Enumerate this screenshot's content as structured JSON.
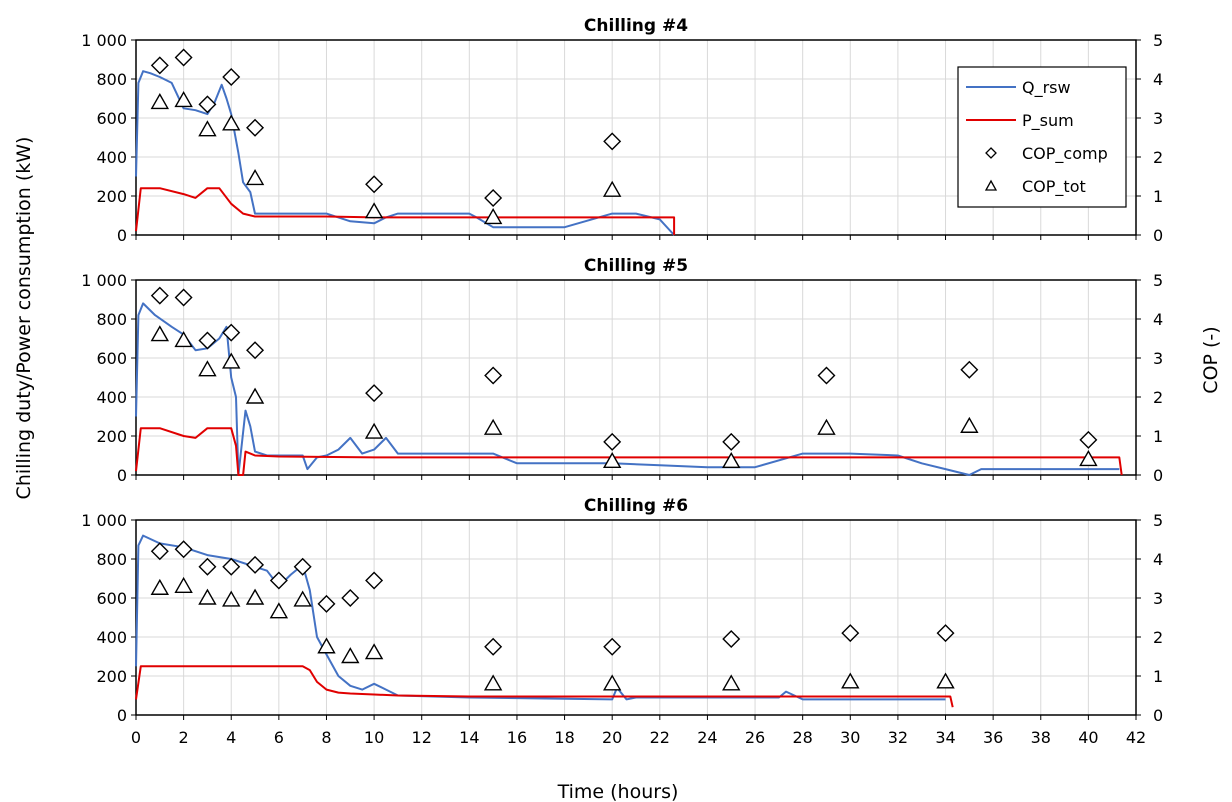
{
  "figure": {
    "ylabel_left": "Chilling duty/Power consumption (kW)",
    "ylabel_right": "COP (-)",
    "xlabel": "Time (hours)",
    "x_ticks": [
      "0",
      "2",
      "4",
      "6",
      "8",
      "10",
      "12",
      "14",
      "16",
      "18",
      "20",
      "22",
      "24",
      "26",
      "28",
      "30",
      "32",
      "34",
      "36",
      "38",
      "40",
      "42"
    ],
    "left_ticks": [
      "0",
      "200",
      "400",
      "600",
      "800",
      "1 000"
    ],
    "right_ticks": [
      "0",
      "1",
      "2",
      "3",
      "4",
      "5"
    ],
    "legend": {
      "q": "Q_rsw",
      "p": "P_sum",
      "cop_comp": "COP_comp",
      "cop_tot": "COP_tot"
    }
  },
  "chart_data": [
    {
      "type": "line",
      "title": "Chilling #4",
      "xlim": [
        0,
        42
      ],
      "ylim_left": [
        0,
        1000
      ],
      "ylim_right": [
        0,
        5
      ],
      "grid": true,
      "legend_position": "top-right",
      "series": [
        {
          "name": "Q_rsw",
          "color": "#4472C4",
          "x": [
            0,
            0.1,
            0.3,
            0.6,
            1,
            1.5,
            2,
            2.5,
            3,
            3.3,
            3.6,
            3.8,
            4,
            4.3,
            4.5,
            4.8,
            5,
            6,
            8,
            9,
            10,
            10.5,
            11,
            14,
            14.3,
            15,
            18,
            20,
            21,
            22,
            22.6
          ],
          "y": [
            300,
            780,
            840,
            830,
            810,
            780,
            650,
            640,
            620,
            680,
            770,
            700,
            620,
            420,
            270,
            220,
            110,
            110,
            110,
            70,
            60,
            90,
            110,
            110,
            90,
            40,
            40,
            110,
            110,
            80,
            0
          ]
        },
        {
          "name": "P_sum",
          "color": "#E00000",
          "x": [
            0,
            0.2,
            1,
            2,
            2.5,
            3,
            3.5,
            4,
            4.5,
            5,
            6,
            8,
            10,
            12,
            15,
            18,
            20,
            22.6,
            22.6
          ],
          "y": [
            20,
            240,
            240,
            210,
            190,
            240,
            240,
            160,
            110,
            95,
            95,
            95,
            90,
            90,
            90,
            90,
            90,
            90,
            0
          ]
        },
        {
          "name": "COP_comp",
          "axis": "right",
          "marker": "diamond",
          "x": [
            1,
            2,
            3,
            4,
            5,
            10,
            15,
            20
          ],
          "y": [
            4.35,
            4.55,
            3.35,
            4.05,
            2.75,
            1.3,
            0.95,
            2.4
          ]
        },
        {
          "name": "COP_tot",
          "axis": "right",
          "marker": "triangle",
          "x": [
            1,
            2,
            3,
            4,
            5,
            10,
            15,
            20
          ],
          "y": [
            3.4,
            3.45,
            2.7,
            2.85,
            1.45,
            0.6,
            0.45,
            1.15
          ]
        }
      ]
    },
    {
      "type": "line",
      "title": "Chilling #5",
      "xlim": [
        0,
        42
      ],
      "ylim_left": [
        0,
        1000
      ],
      "ylim_right": [
        0,
        5
      ],
      "grid": true,
      "legend_position": "none",
      "series": [
        {
          "name": "Q_rsw",
          "color": "#4472C4",
          "x": [
            0,
            0.1,
            0.3,
            0.8,
            1.5,
            2,
            2.5,
            3,
            3.5,
            3.8,
            4,
            4.2,
            4.3,
            4.6,
            4.8,
            5,
            5.5,
            6,
            7,
            7.2,
            7.6,
            8,
            8.5,
            9,
            9.5,
            10,
            10.5,
            11,
            15,
            16,
            20,
            22,
            24,
            26,
            28,
            30,
            32,
            33,
            34,
            35,
            35.5,
            36,
            41.3
          ],
          "y": [
            300,
            820,
            880,
            820,
            760,
            720,
            640,
            650,
            700,
            760,
            500,
            400,
            0,
            330,
            250,
            120,
            100,
            100,
            100,
            30,
            90,
            100,
            130,
            190,
            110,
            130,
            190,
            110,
            110,
            60,
            60,
            50,
            40,
            40,
            110,
            110,
            100,
            60,
            30,
            0,
            30,
            30,
            30
          ]
        },
        {
          "name": "P_sum",
          "color": "#E00000",
          "x": [
            0,
            0.2,
            1,
            2,
            2.5,
            3,
            4,
            4.2,
            4.3,
            4.5,
            4.6,
            5,
            6,
            10,
            15,
            20,
            25,
            30,
            35,
            41.3,
            41.4
          ],
          "y": [
            20,
            240,
            240,
            200,
            190,
            240,
            240,
            150,
            0,
            0,
            120,
            100,
            95,
            90,
            90,
            90,
            90,
            90,
            90,
            90,
            0
          ]
        },
        {
          "name": "COP_comp",
          "axis": "right",
          "marker": "diamond",
          "x": [
            1,
            2,
            3,
            4,
            5,
            10,
            15,
            20,
            25,
            29,
            35,
            40
          ],
          "y": [
            4.6,
            4.55,
            3.45,
            3.65,
            3.2,
            2.1,
            2.55,
            0.85,
            0.85,
            2.55,
            2.7,
            0.9
          ]
        },
        {
          "name": "COP_tot",
          "axis": "right",
          "marker": "triangle",
          "x": [
            1,
            2,
            3,
            4,
            5,
            10,
            15,
            20,
            25,
            29,
            35,
            40
          ],
          "y": [
            3.6,
            3.45,
            2.7,
            2.9,
            2.0,
            1.1,
            1.2,
            0.35,
            0.35,
            1.2,
            1.25,
            0.4
          ]
        }
      ]
    },
    {
      "type": "line",
      "title": "Chilling #6",
      "xlim": [
        0,
        42
      ],
      "ylim_left": [
        0,
        1000
      ],
      "ylim_right": [
        0,
        5
      ],
      "grid": true,
      "legend_position": "none",
      "series": [
        {
          "name": "Q_rsw",
          "color": "#4472C4",
          "x": [
            0,
            0.1,
            0.3,
            1,
            2,
            3,
            4,
            5,
            5.5,
            6,
            6.5,
            7,
            7.3,
            7.6,
            8,
            8.5,
            9,
            9.5,
            10,
            10.5,
            11,
            14,
            20,
            20.2,
            20.6,
            21,
            26,
            27,
            27.3,
            28,
            34
          ],
          "y": [
            250,
            870,
            920,
            880,
            860,
            820,
            800,
            760,
            740,
            660,
            720,
            770,
            640,
            400,
            310,
            200,
            150,
            130,
            160,
            130,
            100,
            90,
            80,
            140,
            80,
            90,
            90,
            90,
            120,
            80,
            80
          ]
        },
        {
          "name": "P_sum",
          "color": "#E00000",
          "x": [
            0,
            0.2,
            2,
            4,
            6,
            7,
            7.3,
            7.6,
            8,
            8.5,
            9,
            10,
            11,
            14,
            20,
            25,
            30,
            34.2,
            34.3
          ],
          "y": [
            80,
            250,
            250,
            250,
            250,
            250,
            230,
            170,
            130,
            115,
            110,
            105,
            100,
            95,
            95,
            95,
            95,
            95,
            40
          ]
        },
        {
          "name": "COP_comp",
          "axis": "right",
          "marker": "diamond",
          "x": [
            1,
            2,
            3,
            4,
            5,
            6,
            7,
            8,
            9,
            10,
            15,
            20,
            25,
            30,
            34
          ],
          "y": [
            4.2,
            4.25,
            3.8,
            3.8,
            3.85,
            3.45,
            3.8,
            2.85,
            3.0,
            3.45,
            1.75,
            1.75,
            1.95,
            2.1,
            2.1
          ]
        },
        {
          "name": "COP_tot",
          "axis": "right",
          "marker": "triangle",
          "x": [
            1,
            2,
            3,
            4,
            5,
            6,
            7,
            8,
            9,
            10,
            15,
            20,
            25,
            30,
            34
          ],
          "y": [
            3.25,
            3.3,
            3.0,
            2.95,
            3.0,
            2.65,
            2.95,
            1.75,
            1.5,
            1.6,
            0.8,
            0.8,
            0.8,
            0.85,
            0.85
          ]
        }
      ]
    }
  ]
}
